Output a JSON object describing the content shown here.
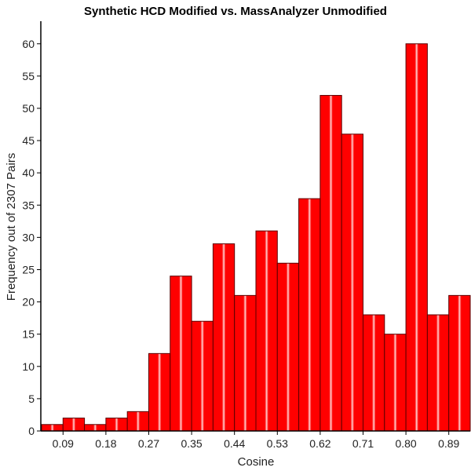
{
  "chart_data": {
    "type": "bar",
    "title": "Synthetic HCD Modified vs. MassAnalyzer Unmodified",
    "xlabel": "Cosine",
    "ylabel": "Frequency out of 2307 Pairs",
    "x_tick_labels": [
      "0.09",
      "0.18",
      "0.27",
      "0.35",
      "0.44",
      "0.53",
      "0.62",
      "0.71",
      "0.80",
      "0.89"
    ],
    "y_ticks": [
      0,
      5,
      10,
      15,
      20,
      25,
      30,
      35,
      40,
      45,
      50,
      55,
      60
    ],
    "ylim": [
      0,
      63.5
    ],
    "values": [
      1,
      2,
      1,
      2,
      3,
      12,
      24,
      17,
      29,
      21,
      31,
      26,
      36,
      52,
      46,
      18,
      15,
      60,
      18,
      21
    ],
    "bar_color": "#ff0000",
    "bar_edge_color": "#5a0000",
    "grid": false,
    "legend": "none"
  }
}
